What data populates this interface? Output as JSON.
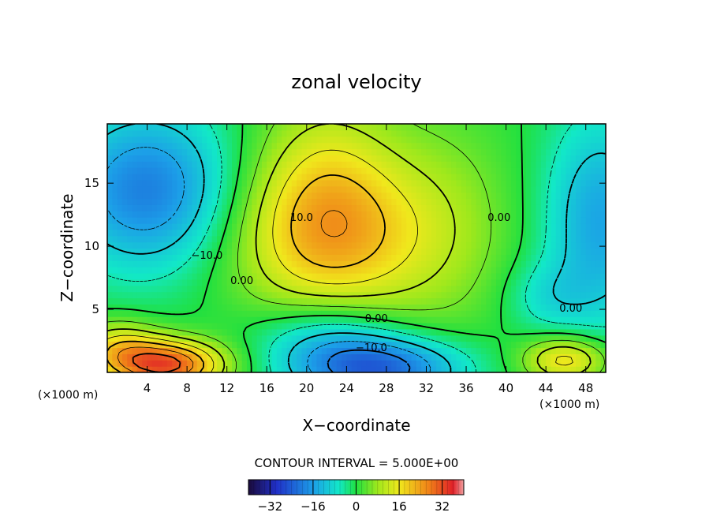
{
  "chart_data": {
    "type": "heatmap",
    "title": "zonal velocity",
    "xlabel": "X−coordinate",
    "ylabel": "Z−coordinate",
    "x_unit": "(×1000 m)",
    "y_unit": "(×1000 m)",
    "xlim": [
      0,
      50
    ],
    "ylim": [
      0,
      19.7
    ],
    "x_ticks": [
      4,
      8,
      12,
      16,
      20,
      24,
      28,
      32,
      36,
      40,
      44,
      48
    ],
    "y_ticks": [
      5,
      10,
      15
    ],
    "contour_interval_text": "CONTOUR INTERVAL = 5.000E+00",
    "contour_labels": [
      {
        "text": "10.0",
        "x": 19.5,
        "z": 12.0
      },
      {
        "text": "−10.0",
        "x": 10.0,
        "z": 9.0
      },
      {
        "text": "0.00",
        "x": 13.5,
        "z": 7.0
      },
      {
        "text": "0.00",
        "x": 27.0,
        "z": 4.0
      },
      {
        "text": "−10.0",
        "x": 26.5,
        "z": 1.7
      },
      {
        "text": "0.00",
        "x": 39.3,
        "z": 12.0
      },
      {
        "text": "0.00",
        "x": 46.5,
        "z": 4.8
      }
    ],
    "colorbar": {
      "min": -40,
      "max": 40,
      "ticks": [
        -32,
        -16,
        0,
        16,
        32
      ],
      "tick_labels": [
        "−32",
        "−16",
        "0",
        "16",
        "32"
      ]
    },
    "features": [
      {
        "type": "max",
        "x": 22.5,
        "z": 10.5,
        "value": 20
      },
      {
        "type": "min",
        "x": 4,
        "z": 14.5,
        "value": -18
      },
      {
        "type": "max",
        "x": 6,
        "z": 0.6,
        "value": 32
      },
      {
        "type": "min",
        "x": 27,
        "z": 0.3,
        "value": -25
      },
      {
        "type": "min",
        "x": 49,
        "z": 12,
        "value": -14
      },
      {
        "type": "max",
        "x": 46,
        "z": 1.0,
        "value": 20
      }
    ]
  }
}
